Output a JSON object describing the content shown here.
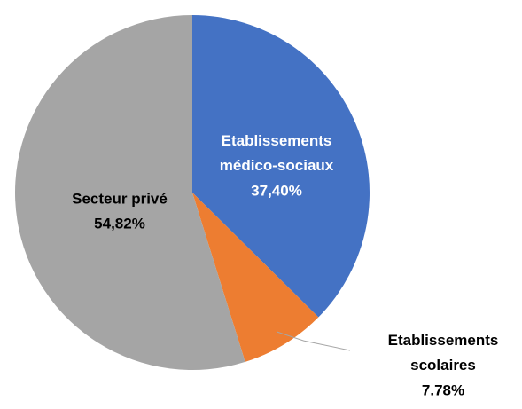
{
  "chart_data": {
    "type": "pie",
    "categories": [
      "Etablissements médico-sociaux",
      "Etablissements scolaires",
      "Secteur privé"
    ],
    "values": [
      37.4,
      7.78,
      54.82
    ],
    "value_labels": [
      "37,40%",
      "7.78%",
      "54,82%"
    ],
    "colors": [
      "#4472c4",
      "#ed7d31",
      "#a5a5a5"
    ]
  }
}
